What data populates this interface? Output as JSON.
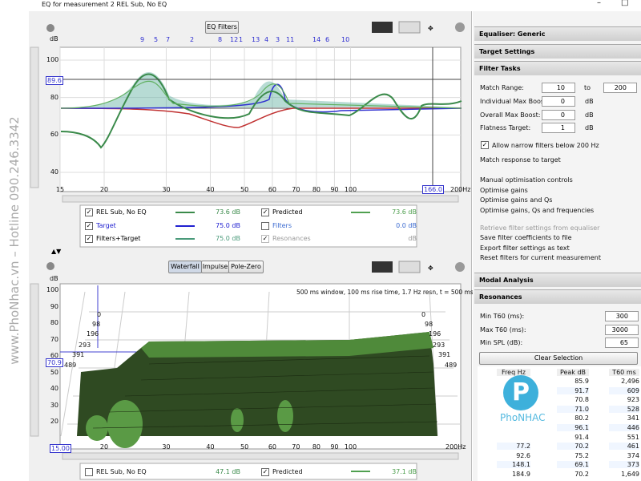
{
  "window": {
    "title": "EQ for measurement 2 REL Sub, No EQ"
  },
  "top": {
    "button": "EQ Filters",
    "filter_numbers": [
      "9",
      "5",
      "7",
      "2",
      "8",
      "12",
      "1",
      "13",
      "4",
      "3",
      "11",
      "14",
      "6",
      "10"
    ],
    "y_unit": "dB",
    "yticks": [
      100,
      80,
      60,
      40
    ],
    "cursor_y": "89.6",
    "xticks": [
      15,
      20,
      30,
      40,
      50,
      60,
      70,
      80,
      90,
      100
    ],
    "cursor_x": "166.0",
    "x_end": "200Hz",
    "legend": [
      {
        "name": "REL Sub, No EQ",
        "value": "73.6 dB"
      },
      {
        "name": "Target",
        "value": "75.0 dB"
      },
      {
        "name": "Filters+Target",
        "value": "75.0 dB"
      },
      {
        "name": "Predicted",
        "value": "73.6 dB"
      },
      {
        "name": "Filters",
        "value": "0.0 dB"
      },
      {
        "name": "Resonances",
        "value": "dB"
      }
    ]
  },
  "bottom": {
    "buttons": [
      "Waterfall",
      "Impulse",
      "Pole-Zero"
    ],
    "caption": "500 ms window, 100 ms rise time, 1.7 Hz resn, t = 500 ms",
    "y_unit": "dB",
    "yticks": [
      100,
      90,
      80,
      70,
      60,
      50,
      40,
      30,
      20
    ],
    "cursor_y": "70.9",
    "cursor_x": "15.00",
    "time_labels": [
      "0",
      "98",
      "196",
      "293",
      "391",
      "489"
    ],
    "xticks": [
      20,
      30,
      40,
      50,
      60,
      70,
      80,
      90,
      100
    ],
    "x_end": "200Hz",
    "legend": [
      {
        "name": "REL Sub, No EQ",
        "value": "47.1 dB"
      },
      {
        "name": "Predicted",
        "value": "37.1 dB"
      }
    ]
  },
  "side": {
    "sections": [
      "Equaliser: Generic",
      "Target Settings",
      "Filter Tasks"
    ],
    "match_range": {
      "label": "Match Range:",
      "from": "10",
      "to_label": "to",
      "to": "200"
    },
    "fields": [
      {
        "label": "Individual Max Boost:",
        "value": "0",
        "unit": "dB"
      },
      {
        "label": "Overall Max Boost:",
        "value": "0",
        "unit": "dB"
      },
      {
        "label": "Flatness Target:",
        "value": "1",
        "unit": "dB"
      }
    ],
    "narrow_filters": "Allow narrow filters below 200 Hz",
    "match_target": "Match response to target",
    "actions": [
      "Manual optimisation controls",
      "Optimise gains",
      "Optimise gains and Qs",
      "Optimise gains, Qs and frequencies"
    ],
    "disabled_action": "Retrieve filter settings from equaliser",
    "file_actions": [
      "Save filter coefficients to file",
      "Export filter settings as text",
      "Reset filters for current measurement"
    ],
    "modal": "Modal Analysis",
    "resonances": "Resonances",
    "res_fields": [
      {
        "label": "Min T60 (ms):",
        "value": "300"
      },
      {
        "label": "Max T60 (ms):",
        "value": "3000"
      },
      {
        "label": "Min SPL (dB):",
        "value": "65"
      }
    ],
    "clear": "Clear Selection",
    "table": {
      "headers": [
        "Freq Hz",
        "Peak dB",
        "T60 ms"
      ],
      "rows": [
        [
          null,
          "85.9",
          "2,496"
        ],
        [
          null,
          "91.7",
          "609"
        ],
        [
          null,
          "70.8",
          "923"
        ],
        [
          null,
          "71.0",
          "528"
        ],
        [
          null,
          "80.2",
          "341"
        ],
        [
          null,
          "96.1",
          "446"
        ],
        [
          null,
          "91.4",
          "551"
        ],
        [
          "77.2",
          "70.2",
          "461"
        ],
        [
          "92.6",
          "75.2",
          "374"
        ],
        [
          "148.1",
          "69.1",
          "373"
        ],
        [
          "184.9",
          "70.2",
          "1,649"
        ]
      ]
    }
  },
  "watermark": {
    "text": "www.PhoNhac.vn – Hotline 090.246.3342",
    "logo": "PhoNHAC"
  }
}
